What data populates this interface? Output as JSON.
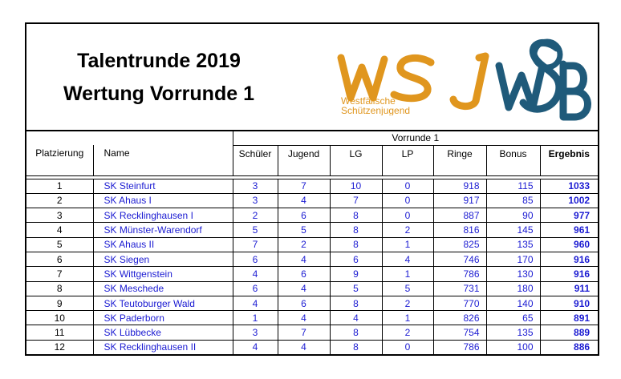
{
  "title_line1": "Talentrunde 2019",
  "title_line2": "Wertung Vorrunde 1",
  "logo_wsj": {
    "letters": "WSJ",
    "line1": "Westfälische",
    "line2": "Schützenjugend",
    "color": "#e0961e"
  },
  "logo_wsb": {
    "letters": "WSB",
    "color": "#1f5a7a"
  },
  "group_header": "Vorrunde 1",
  "columns": [
    "Platzierung",
    "Name",
    "Schüler",
    "Jugend",
    "LG",
    "LP",
    "Ringe",
    "Bonus",
    "Ergebnis"
  ],
  "rows": [
    {
      "platz": "1",
      "name": "SK Steinfurt",
      "schueler": "3",
      "jugend": "7",
      "lg": "10",
      "lp": "0",
      "ringe": "918",
      "bonus": "115",
      "ergebnis": "1033"
    },
    {
      "platz": "2",
      "name": "SK Ahaus I",
      "schueler": "3",
      "jugend": "4",
      "lg": "7",
      "lp": "0",
      "ringe": "917",
      "bonus": "85",
      "ergebnis": "1002"
    },
    {
      "platz": "3",
      "name": "SK Recklinghausen I",
      "schueler": "2",
      "jugend": "6",
      "lg": "8",
      "lp": "0",
      "ringe": "887",
      "bonus": "90",
      "ergebnis": "977"
    },
    {
      "platz": "4",
      "name": "SK Münster-Warendorf",
      "schueler": "5",
      "jugend": "5",
      "lg": "8",
      "lp": "2",
      "ringe": "816",
      "bonus": "145",
      "ergebnis": "961"
    },
    {
      "platz": "5",
      "name": "SK Ahaus II",
      "schueler": "7",
      "jugend": "2",
      "lg": "8",
      "lp": "1",
      "ringe": "825",
      "bonus": "135",
      "ergebnis": "960"
    },
    {
      "platz": "6",
      "name": "SK Siegen",
      "schueler": "6",
      "jugend": "4",
      "lg": "6",
      "lp": "4",
      "ringe": "746",
      "bonus": "170",
      "ergebnis": "916"
    },
    {
      "platz": "7",
      "name": "SK Wittgenstein",
      "schueler": "4",
      "jugend": "6",
      "lg": "9",
      "lp": "1",
      "ringe": "786",
      "bonus": "130",
      "ergebnis": "916"
    },
    {
      "platz": "8",
      "name": "SK Meschede",
      "schueler": "6",
      "jugend": "4",
      "lg": "5",
      "lp": "5",
      "ringe": "731",
      "bonus": "180",
      "ergebnis": "911"
    },
    {
      "platz": "9",
      "name": "SK Teutoburger Wald",
      "schueler": "4",
      "jugend": "6",
      "lg": "8",
      "lp": "2",
      "ringe": "770",
      "bonus": "140",
      "ergebnis": "910"
    },
    {
      "platz": "10",
      "name": "SK Paderborn",
      "schueler": "1",
      "jugend": "4",
      "lg": "4",
      "lp": "1",
      "ringe": "826",
      "bonus": "65",
      "ergebnis": "891"
    },
    {
      "platz": "11",
      "name": "SK Lübbecke",
      "schueler": "3",
      "jugend": "7",
      "lg": "8",
      "lp": "2",
      "ringe": "754",
      "bonus": "135",
      "ergebnis": "889"
    },
    {
      "platz": "12",
      "name": "SK Recklinghausen II",
      "schueler": "4",
      "jugend": "4",
      "lg": "8",
      "lp": "0",
      "ringe": "786",
      "bonus": "100",
      "ergebnis": "886"
    }
  ]
}
